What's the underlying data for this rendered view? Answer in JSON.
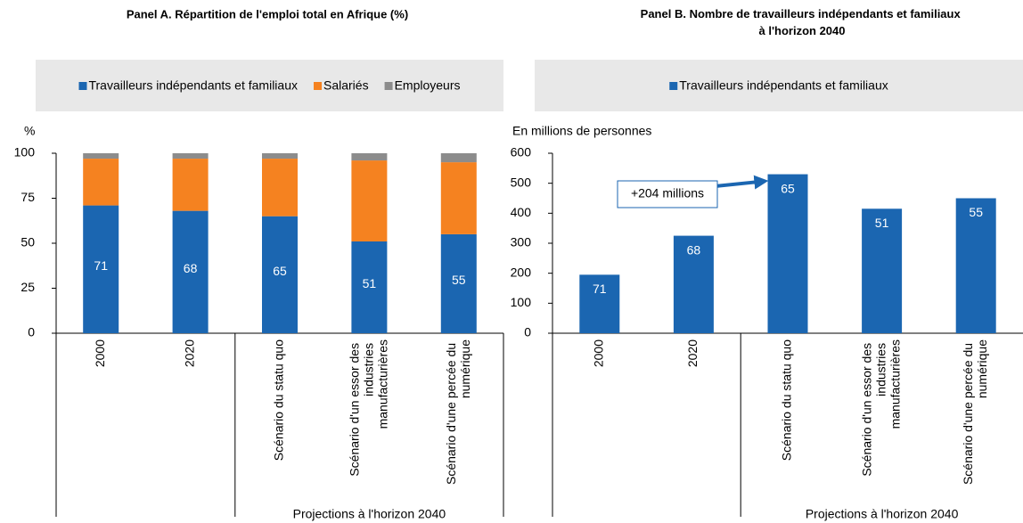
{
  "chart_data": [
    {
      "type": "stacked_bar",
      "title": "Panel A. Répartition de l'emploi total en Afrique (%)",
      "ylabel": "%",
      "categories": [
        "2000",
        "2020",
        "Scénario du statu quo",
        "Scénario d'un essor des industries manufacturières",
        "Scénario d'une percée du numérique"
      ],
      "category_group_label": "Projections à l'horizon 2040",
      "series": [
        {
          "name": "Travailleurs indépendants et familiaux",
          "color": "#1b66b1",
          "values": [
            71,
            68,
            65,
            51,
            55
          ],
          "data_labels": true
        },
        {
          "name": "Salariés",
          "color": "#f58220",
          "values": [
            26,
            29,
            32,
            45,
            40
          ]
        },
        {
          "name": "Employeurs",
          "color": "#8c8c8c",
          "values": [
            3,
            3,
            3,
            4,
            5
          ]
        }
      ],
      "ylim": [
        0,
        100
      ],
      "yticks": [
        0,
        25,
        50,
        75,
        100
      ],
      "grid": false,
      "legend": "top"
    },
    {
      "type": "bar",
      "title": "Panel B. Nombre de travailleurs indépendants et familiaux à l'horizon 2040",
      "ylabel": "En millions de personnes",
      "categories": [
        "2000",
        "2020",
        "Scénario du statu quo",
        "Scénario d'un essor des industries manufacturières",
        "Scénario d'une percée du numérique"
      ],
      "category_group_label": "Projections à l'horizon 2040",
      "series": [
        {
          "name": "Travailleurs indépendants et familiaux",
          "color": "#1b66b1",
          "values": [
            195,
            325,
            530,
            415,
            450
          ]
        }
      ],
      "share_labels": [
        71,
        68,
        65,
        51,
        55
      ],
      "annotation": "+204 millions",
      "ylim": [
        0,
        600
      ],
      "yticks": [
        0,
        100,
        200,
        300,
        400,
        500,
        600
      ],
      "grid": false,
      "legend": "top"
    }
  ]
}
